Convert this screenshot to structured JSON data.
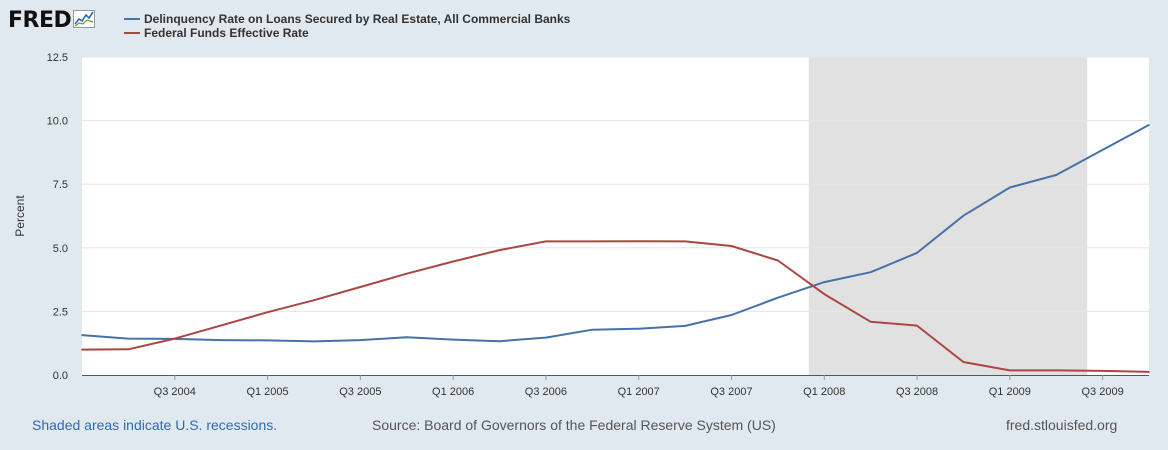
{
  "logo": {
    "text": "FRED",
    "icon": "trend-chart-icon"
  },
  "chart_data": {
    "type": "line",
    "title": "",
    "ylabel": "Percent",
    "xlabel": "",
    "ylim": [
      0,
      12.5
    ],
    "yticks": [
      0.0,
      2.5,
      5.0,
      7.5,
      10.0,
      12.5
    ],
    "ytick_labels": [
      "0.0",
      "2.5",
      "5.0",
      "7.5",
      "10.0",
      "12.5"
    ],
    "xlim": [
      2004.0,
      2009.75
    ],
    "x_tick_positions": [
      2004.5,
      2005.0,
      2005.5,
      2006.0,
      2006.5,
      2007.0,
      2007.5,
      2008.0,
      2008.5,
      2009.0,
      2009.5
    ],
    "x_tick_labels": [
      "Q3 2004",
      "Q1 2005",
      "Q3 2005",
      "Q1 2006",
      "Q3 2006",
      "Q1 2007",
      "Q3 2007",
      "Q1 2008",
      "Q3 2008",
      "Q1 2009",
      "Q3 2009"
    ],
    "recession": {
      "start": 2007.9167,
      "end": 2009.4167
    },
    "x": [
      2004.0,
      2004.25,
      2004.5,
      2004.75,
      2005.0,
      2005.25,
      2005.5,
      2005.75,
      2006.0,
      2006.25,
      2006.5,
      2006.75,
      2007.0,
      2007.25,
      2007.5,
      2007.75,
      2008.0,
      2008.25,
      2008.5,
      2008.75,
      2009.0,
      2009.25,
      2009.5,
      2009.75
    ],
    "series": [
      {
        "name": "Delinquency Rate on Loans Secured by Real Estate, All Commercial Banks",
        "color": "#4572a7",
        "values": [
          1.57,
          1.43,
          1.42,
          1.37,
          1.36,
          1.32,
          1.37,
          1.48,
          1.39,
          1.33,
          1.47,
          1.78,
          1.82,
          1.93,
          2.36,
          3.04,
          3.65,
          4.04,
          4.8,
          6.26,
          7.37,
          7.86,
          8.85,
          9.83
        ]
      },
      {
        "name": "Federal Funds Effective Rate",
        "color": "#aa4643",
        "values": [
          1.0,
          1.01,
          1.43,
          1.95,
          2.47,
          2.94,
          3.46,
          3.98,
          4.46,
          4.91,
          5.25,
          5.25,
          5.26,
          5.25,
          5.07,
          4.5,
          3.18,
          2.09,
          1.94,
          0.51,
          0.18,
          0.18,
          0.16,
          0.12
        ]
      }
    ]
  },
  "footer": {
    "recession_note": "Shaded areas indicate U.S. recessions.",
    "source": "Source: Board of Governors of the Federal Reserve System (US)",
    "site": "fred.stlouisfed.org"
  }
}
